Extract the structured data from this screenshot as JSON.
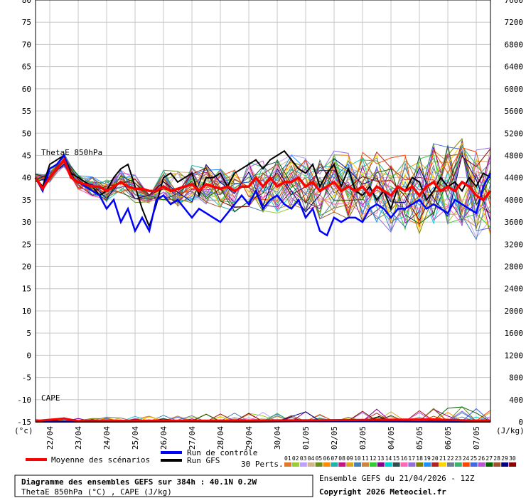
{
  "chart_data": {
    "type": "line",
    "left_axis": {
      "unit": "(°c)",
      "ticks": [
        80,
        75,
        70,
        65,
        60,
        55,
        50,
        45,
        40,
        35,
        30,
        25,
        20,
        15,
        10,
        5,
        0,
        -5,
        -10,
        -15
      ],
      "ylim": [
        -15,
        80
      ]
    },
    "right_axis": {
      "unit": "(J/kg)",
      "ticks": [
        7600,
        7200,
        6800,
        6400,
        6000,
        5600,
        5200,
        4800,
        4400,
        4000,
        3600,
        3200,
        2800,
        2400,
        2000,
        1600,
        1200,
        800,
        400,
        0
      ],
      "ylim": [
        0,
        7600
      ]
    },
    "x_dates": [
      "22/04",
      "23/04",
      "24/04",
      "25/04",
      "26/04",
      "27/04",
      "28/04",
      "29/04",
      "30/04",
      "01/05",
      "02/05",
      "03/05",
      "04/05",
      "05/05",
      "06/05",
      "07/05"
    ],
    "xlim_hours": [
      0,
      384
    ],
    "theta_label": "ThetaE 850hPa",
    "cape_label": "CAPE",
    "series_style": {
      "mean_color": "#ff0000",
      "control_color": "#0000ff",
      "gfs_color": "#000000"
    },
    "theta_mean": [
      [
        0,
        40
      ],
      [
        6,
        37.5
      ],
      [
        12,
        40
      ],
      [
        18,
        42
      ],
      [
        24,
        44
      ],
      [
        30,
        40
      ],
      [
        36,
        39
      ],
      [
        42,
        38.5
      ],
      [
        48,
        38
      ],
      [
        54,
        38
      ],
      [
        60,
        37
      ],
      [
        66,
        38
      ],
      [
        72,
        39
      ],
      [
        78,
        38
      ],
      [
        84,
        37.5
      ],
      [
        90,
        37.5
      ],
      [
        96,
        37
      ],
      [
        102,
        37
      ],
      [
        108,
        38
      ],
      [
        114,
        37
      ],
      [
        120,
        37.5
      ],
      [
        126,
        38
      ],
      [
        132,
        38.5
      ],
      [
        138,
        37
      ],
      [
        144,
        38.5
      ],
      [
        150,
        38
      ],
      [
        156,
        37.5
      ],
      [
        162,
        38
      ],
      [
        168,
        37
      ],
      [
        174,
        38
      ],
      [
        180,
        38
      ],
      [
        186,
        40
      ],
      [
        192,
        38
      ],
      [
        198,
        40
      ],
      [
        204,
        38
      ],
      [
        210,
        39
      ],
      [
        216,
        39
      ],
      [
        222,
        40
      ],
      [
        228,
        38
      ],
      [
        234,
        39
      ],
      [
        240,
        37
      ],
      [
        246,
        38
      ],
      [
        252,
        39
      ],
      [
        258,
        37
      ],
      [
        264,
        38
      ],
      [
        270,
        37
      ],
      [
        276,
        38
      ],
      [
        282,
        36
      ],
      [
        288,
        38
      ],
      [
        294,
        37
      ],
      [
        300,
        36
      ],
      [
        306,
        38
      ],
      [
        312,
        37
      ],
      [
        318,
        38
      ],
      [
        324,
        36
      ],
      [
        330,
        38
      ],
      [
        336,
        39
      ],
      [
        342,
        37
      ],
      [
        348,
        38
      ],
      [
        354,
        37
      ],
      [
        360,
        39
      ],
      [
        366,
        38
      ],
      [
        372,
        36
      ],
      [
        378,
        35
      ],
      [
        384,
        37
      ]
    ],
    "theta_control": [
      [
        0,
        40
      ],
      [
        6,
        37
      ],
      [
        12,
        42
      ],
      [
        18,
        43
      ],
      [
        24,
        45
      ],
      [
        30,
        40
      ],
      [
        36,
        39
      ],
      [
        42,
        38
      ],
      [
        48,
        37
      ],
      [
        54,
        36
      ],
      [
        60,
        33
      ],
      [
        66,
        35
      ],
      [
        72,
        30
      ],
      [
        78,
        33
      ],
      [
        84,
        28
      ],
      [
        90,
        31
      ],
      [
        96,
        28
      ],
      [
        102,
        35
      ],
      [
        108,
        36
      ],
      [
        114,
        34
      ],
      [
        120,
        35
      ],
      [
        126,
        33
      ],
      [
        132,
        31
      ],
      [
        138,
        33
      ],
      [
        144,
        32
      ],
      [
        150,
        31
      ],
      [
        156,
        30
      ],
      [
        162,
        32
      ],
      [
        168,
        34
      ],
      [
        174,
        36
      ],
      [
        180,
        34
      ],
      [
        186,
        37
      ],
      [
        192,
        33
      ],
      [
        198,
        35
      ],
      [
        204,
        36
      ],
      [
        210,
        34
      ],
      [
        216,
        33
      ],
      [
        222,
        35
      ],
      [
        228,
        31
      ],
      [
        234,
        33
      ],
      [
        240,
        28
      ],
      [
        246,
        27
      ],
      [
        252,
        31
      ],
      [
        258,
        30
      ],
      [
        264,
        31
      ],
      [
        270,
        31
      ],
      [
        276,
        30
      ],
      [
        282,
        33
      ],
      [
        288,
        34
      ],
      [
        294,
        33
      ],
      [
        300,
        31
      ],
      [
        306,
        33
      ],
      [
        312,
        33
      ],
      [
        318,
        34
      ],
      [
        324,
        35
      ],
      [
        330,
        33
      ],
      [
        336,
        34
      ],
      [
        342,
        33
      ],
      [
        348,
        32
      ],
      [
        354,
        35
      ],
      [
        360,
        34
      ],
      [
        366,
        33
      ],
      [
        372,
        32
      ],
      [
        378,
        38
      ],
      [
        384,
        41
      ]
    ],
    "theta_gfs": [
      [
        0,
        40
      ],
      [
        6,
        38
      ],
      [
        12,
        43
      ],
      [
        18,
        44
      ],
      [
        24,
        45
      ],
      [
        30,
        41
      ],
      [
        36,
        40
      ],
      [
        42,
        39
      ],
      [
        48,
        38
      ],
      [
        54,
        36
      ],
      [
        60,
        37
      ],
      [
        66,
        40
      ],
      [
        72,
        42
      ],
      [
        78,
        43
      ],
      [
        84,
        38
      ],
      [
        90,
        33
      ],
      [
        96,
        29
      ],
      [
        102,
        34
      ],
      [
        108,
        40
      ],
      [
        114,
        41
      ],
      [
        120,
        39
      ],
      [
        126,
        40
      ],
      [
        132,
        41
      ],
      [
        138,
        36
      ],
      [
        144,
        40
      ],
      [
        150,
        40
      ],
      [
        156,
        41
      ],
      [
        162,
        38
      ],
      [
        168,
        41
      ],
      [
        174,
        42
      ],
      [
        180,
        43
      ],
      [
        186,
        44
      ],
      [
        192,
        42
      ],
      [
        198,
        44
      ],
      [
        204,
        45
      ],
      [
        210,
        46
      ],
      [
        216,
        44
      ],
      [
        222,
        42
      ],
      [
        228,
        41
      ],
      [
        234,
        43
      ],
      [
        240,
        38
      ],
      [
        246,
        41
      ],
      [
        252,
        43
      ],
      [
        258,
        38
      ],
      [
        264,
        42
      ],
      [
        270,
        37
      ],
      [
        276,
        36
      ],
      [
        282,
        38
      ],
      [
        288,
        35
      ],
      [
        294,
        37
      ],
      [
        300,
        33
      ],
      [
        306,
        38
      ],
      [
        312,
        37
      ],
      [
        318,
        40
      ],
      [
        324,
        39
      ],
      [
        330,
        35
      ],
      [
        336,
        37
      ],
      [
        342,
        40
      ],
      [
        348,
        38
      ],
      [
        354,
        39
      ],
      [
        360,
        37
      ],
      [
        366,
        40
      ],
      [
        372,
        38
      ],
      [
        378,
        41
      ],
      [
        384,
        40
      ]
    ],
    "cape_control": [
      [
        0,
        0
      ],
      [
        60,
        0
      ],
      [
        120,
        10
      ],
      [
        180,
        0
      ],
      [
        240,
        20
      ],
      [
        300,
        10
      ],
      [
        360,
        0
      ],
      [
        384,
        0
      ]
    ],
    "cape_gfs": [
      [
        0,
        0
      ],
      [
        12,
        0
      ],
      [
        24,
        150
      ],
      [
        36,
        0
      ],
      [
        60,
        0
      ],
      [
        100,
        50
      ],
      [
        140,
        0
      ],
      [
        200,
        0
      ],
      [
        220,
        60
      ],
      [
        240,
        0
      ],
      [
        280,
        0
      ],
      [
        290,
        200
      ],
      [
        300,
        0
      ],
      [
        330,
        0
      ],
      [
        340,
        100
      ],
      [
        360,
        0
      ],
      [
        384,
        0
      ]
    ],
    "cape_mean": [
      [
        0,
        30
      ],
      [
        24,
        120
      ],
      [
        36,
        30
      ],
      [
        120,
        40
      ],
      [
        180,
        50
      ],
      [
        240,
        60
      ],
      [
        300,
        80
      ],
      [
        336,
        90
      ],
      [
        360,
        60
      ],
      [
        384,
        40
      ]
    ],
    "legend": {
      "mean": "Moyenne des scénarios",
      "control": "Run de contrôle",
      "gfs": "Run GFS",
      "perts": "30 Perts.",
      "pert_ids": [
        "01",
        "02",
        "03",
        "04",
        "05",
        "06",
        "07",
        "08",
        "09",
        "10",
        "11",
        "12",
        "13",
        "14",
        "15",
        "16",
        "17",
        "18",
        "19",
        "20",
        "21",
        "22",
        "23",
        "24",
        "25",
        "26",
        "27",
        "28",
        "29",
        "30"
      ],
      "pert_colors": [
        "#e07a2a",
        "#9acd32",
        "#c0a0ff",
        "#d2b48c",
        "#6b8e23",
        "#ff8c00",
        "#20b2aa",
        "#c71585",
        "#daa520",
        "#4682b4",
        "#cd853f",
        "#32cd32",
        "#8b008b",
        "#00ced1",
        "#2f4f4f",
        "#ff69b4",
        "#9370db",
        "#808000",
        "#1e90ff",
        "#b22222",
        "#ffd700",
        "#708090",
        "#3cb371",
        "#ff4500",
        "#4169e1",
        "#ba55d3",
        "#006400",
        "#a0522d",
        "#000080",
        "#8b0000"
      ]
    },
    "footer": {
      "title": "Diagramme des ensembles GEFS sur 384h : 40.1N 0.2W",
      "subtitle": "ThetaE 850hPa (°C) , CAPE (J/kg)",
      "run": "Ensemble GEFS du 21/04/2026 - 12Z",
      "copyright": "Copyright 2026 Meteociel.fr"
    }
  }
}
